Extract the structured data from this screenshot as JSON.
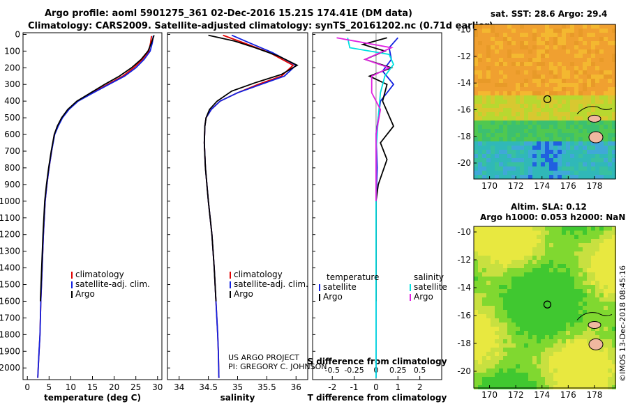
{
  "header": {
    "title_line1": "Argo profile: aoml 5901275_361 02-Dec-2016 15.21S 174.41E (DM data)",
    "title_line2": "Climatology: CARS2009. Satellite-adjusted climatology: synTS_20161202.nc (0.71d earlier)"
  },
  "credit": "©IMOS 13-Dec-2018 08:45:16",
  "colors": {
    "climatology": "#e00000",
    "satellite_adj": "#1020e0",
    "argo": "#000000",
    "argo_salinity": "#e020e0",
    "satellite_salinity": "#00e0e0"
  },
  "chart_data": [
    {
      "type": "line",
      "id": "temperature",
      "xlabel": "temperature (deg C)",
      "ylabel": "pressure",
      "xlim": [
        -1,
        31
      ],
      "ylim": [
        2070,
        -10
      ],
      "xticks": [
        0,
        5,
        10,
        15,
        20,
        25,
        30
      ],
      "yticks": [
        0,
        100,
        200,
        300,
        400,
        500,
        600,
        700,
        800,
        900,
        1000,
        1100,
        1200,
        1300,
        1400,
        1500,
        1600,
        1700,
        1800,
        1900,
        2000
      ],
      "series": [
        {
          "name": "climatology",
          "x": [
            28.6,
            28.4,
            28.0,
            26.5,
            24.5,
            22.0,
            18.5,
            15.0,
            11.5,
            9.5,
            8.0,
            7.0,
            6.2,
            5.6,
            5.0,
            4.5,
            4.1,
            3.7,
            3.4,
            3.1,
            2.9,
            2.7,
            2.5,
            2.4
          ],
          "y": [
            10,
            50,
            100,
            150,
            200,
            250,
            300,
            350,
            400,
            450,
            500,
            550,
            600,
            700,
            800,
            900,
            1000,
            1200,
            1400,
            1600,
            1800,
            1900,
            2000,
            2060
          ]
        },
        {
          "name": "satellite-adj. clim.",
          "x": [
            29.0,
            28.8,
            28.3,
            26.9,
            25.0,
            22.4,
            18.8,
            15.2,
            11.7,
            9.6,
            8.1,
            7.1,
            6.3,
            5.6,
            5.0,
            4.5,
            4.1,
            3.7,
            3.4,
            3.1,
            2.9,
            2.7,
            2.5,
            2.4
          ],
          "y": [
            10,
            50,
            100,
            150,
            200,
            250,
            300,
            350,
            400,
            450,
            500,
            550,
            600,
            700,
            800,
            900,
            1000,
            1200,
            1400,
            1600,
            1800,
            1900,
            2000,
            2060
          ]
        },
        {
          "name": "Argo",
          "x": [
            29.2,
            28.6,
            27.8,
            26.2,
            24.0,
            21.2,
            17.8,
            14.6,
            11.4,
            9.3,
            7.9,
            6.9,
            6.2,
            5.5,
            4.9,
            4.4,
            4.0,
            3.6,
            3.3,
            3.0
          ],
          "y": [
            5,
            50,
            100,
            150,
            200,
            250,
            300,
            350,
            400,
            450,
            500,
            550,
            600,
            700,
            800,
            900,
            1000,
            1200,
            1400,
            1600
          ]
        }
      ],
      "legend": [
        "climatology",
        "satellite-adj. clim.",
        "Argo"
      ]
    },
    {
      "type": "line",
      "id": "salinity",
      "xlabel": "salinity",
      "xlim": [
        33.8,
        36.2
      ],
      "ylim": [
        2070,
        -10
      ],
      "xticks": [
        34,
        34.5,
        35,
        35.5,
        36
      ],
      "series": [
        {
          "name": "climatology",
          "x": [
            34.75,
            35.1,
            35.55,
            35.95,
            35.75,
            35.35,
            35.0,
            34.7,
            34.55,
            34.46,
            34.44,
            34.43,
            34.45,
            34.5,
            34.56,
            34.6,
            34.63,
            34.66,
            34.67,
            34.68
          ],
          "y": [
            5,
            50,
            110,
            185,
            250,
            300,
            350,
            400,
            450,
            500,
            550,
            650,
            800,
            1000,
            1200,
            1400,
            1600,
            1800,
            1900,
            2060
          ]
        },
        {
          "name": "satellite-adj. clim.",
          "x": [
            34.9,
            35.2,
            35.6,
            36.0,
            35.8,
            35.4,
            35.0,
            34.7,
            34.55,
            34.46,
            34.44,
            34.43,
            34.45,
            34.5,
            34.56,
            34.6,
            34.63,
            34.66,
            34.67,
            34.68
          ],
          "y": [
            5,
            50,
            110,
            185,
            250,
            300,
            350,
            400,
            450,
            500,
            550,
            650,
            800,
            1000,
            1200,
            1400,
            1600,
            1800,
            1900,
            2060
          ]
        },
        {
          "name": "Argo",
          "x": [
            34.5,
            34.95,
            35.3,
            35.7,
            36.02,
            35.75,
            35.3,
            34.9,
            34.65,
            34.52,
            34.46,
            34.44,
            34.43,
            34.45,
            34.5,
            34.56,
            34.6,
            34.63
          ],
          "y": [
            5,
            40,
            80,
            130,
            185,
            240,
            290,
            340,
            400,
            450,
            500,
            550,
            650,
            800,
            1000,
            1200,
            1400,
            1600
          ]
        }
      ],
      "legend": [
        "climatology",
        "satellite-adj. clim.",
        "Argo"
      ]
    },
    {
      "type": "line",
      "id": "difference",
      "xlabel": "T difference from climatology",
      "xlabel_top": "S difference from climatology",
      "xlim": [
        -2.9,
        3.0
      ],
      "ylim": [
        2070,
        -10
      ],
      "xticks_bottom": [
        -2,
        -1,
        0,
        1,
        2
      ],
      "xticks_top": [
        "-0.5",
        "-0.25",
        "0",
        "0.25",
        "0.5"
      ],
      "series": [
        {
          "name": "temperature satellite",
          "x": [
            1.0,
            0.6,
            0.7,
            0.3,
            0.8,
            0.2,
            0.1,
            0.0,
            0.05,
            0.0,
            0.0,
            0.0,
            0.0
          ],
          "y": [
            20,
            80,
            150,
            220,
            300,
            400,
            500,
            600,
            800,
            1000,
            1200,
            1600,
            2060
          ]
        },
        {
          "name": "temperature Argo",
          "x": [
            0.5,
            -0.6,
            0.4,
            -0.5,
            0.7,
            -0.3,
            0.5,
            0.3,
            0.8,
            0.2,
            0.5,
            0.1,
            0.0,
            0.0
          ],
          "y": [
            20,
            60,
            100,
            150,
            200,
            250,
            300,
            400,
            550,
            650,
            750,
            900,
            1000,
            1600
          ]
        },
        {
          "name": "salinity satellite",
          "x": [
            -1.3,
            -1.2,
            0.6,
            0.8,
            0.4,
            0.2,
            0.1,
            0.0,
            0.0,
            0.0
          ],
          "y": [
            20,
            80,
            120,
            180,
            250,
            350,
            500,
            700,
            1000,
            2060
          ]
        },
        {
          "name": "salinity Argo",
          "x": [
            -1.8,
            0.7,
            -0.5,
            0.6,
            -0.2,
            -0.2,
            0.2,
            0.0,
            0.0
          ],
          "y": [
            20,
            80,
            150,
            200,
            250,
            350,
            450,
            600,
            1000
          ]
        }
      ],
      "legend_groups": {
        "temperature": "temperature",
        "salinity": "salinity",
        "satellite": "satellite",
        "argo": "Argo"
      }
    }
  ],
  "notes": {
    "line1": "US ARGO PROJECT",
    "line2": "PI: GREGORY C. JOHNSON"
  },
  "map_sst": {
    "title": "sat. SST: 28.6 Argo: 29.4",
    "lon_ticks": [
      "170",
      "172",
      "174",
      "176",
      "178"
    ],
    "lat_ticks": [
      "-10",
      "-12",
      "-14",
      "-16",
      "-18",
      "-20"
    ]
  },
  "map_sla": {
    "title_line1": "Altim. SLA: 0.12",
    "title_line2": "Argo h1000: 0.053 h2000: NaN",
    "lon_ticks": [
      "170",
      "172",
      "174",
      "176",
      "178"
    ],
    "lat_ticks": [
      "-10",
      "-12",
      "-14",
      "-16",
      "-18",
      "-20"
    ]
  },
  "float_position": {
    "lon": 174.41,
    "lat": -15.21
  }
}
